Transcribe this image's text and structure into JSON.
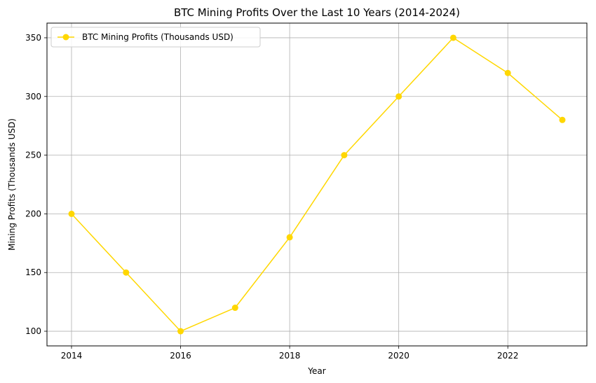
{
  "chart_data": {
    "type": "line",
    "title": "BTC Mining Profits Over the Last 10 Years (2014-2024)",
    "xlabel": "Year",
    "ylabel": "Mining Profits (Thousands USD)",
    "x": [
      2014,
      2015,
      2016,
      2017,
      2018,
      2019,
      2020,
      2021,
      2022,
      2023
    ],
    "series": [
      {
        "name": "BTC Mining Profits (Thousands USD)",
        "values": [
          200,
          150,
          100,
          120,
          180,
          250,
          300,
          350,
          320,
          280
        ],
        "color": "#FFD700",
        "marker": "circle"
      }
    ],
    "xlim": [
      2013.55,
      2023.45
    ],
    "ylim": [
      87.5,
      362.5
    ],
    "xticks": [
      2014,
      2016,
      2018,
      2020,
      2022
    ],
    "yticks": [
      100,
      150,
      200,
      250,
      300,
      350
    ],
    "grid": true,
    "legend_position": "top-left"
  }
}
